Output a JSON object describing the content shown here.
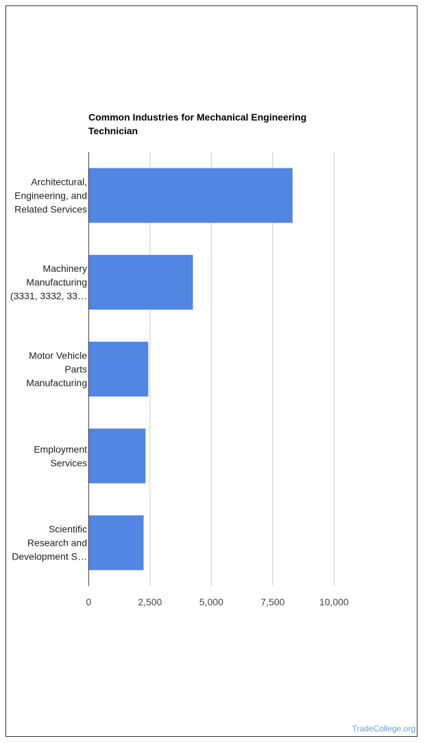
{
  "chart_data": {
    "type": "bar",
    "orientation": "horizontal",
    "title": "Common Industries for Mechanical Engineering Technician",
    "title_lines": [
      "Common Industries for Mechanical Engineering",
      "Technician"
    ],
    "categories": [
      [
        "Architectural,",
        "Engineering, and",
        "Related Services"
      ],
      [
        "Machinery",
        "Manufacturing",
        "(3331, 3332, 33…"
      ],
      [
        "Motor Vehicle",
        "Parts",
        "Manufacturing"
      ],
      [
        "Employment",
        "Services"
      ],
      [
        "Scientific",
        "Research and",
        "Development S…"
      ]
    ],
    "values": [
      8310,
      4250,
      2430,
      2320,
      2240
    ],
    "xlim": [
      0,
      10000
    ],
    "xticks": [
      0,
      2500,
      5000,
      7500,
      10000
    ],
    "xtick_labels": [
      "0",
      "2,500",
      "5,000",
      "7,500",
      "10,000"
    ],
    "grid": true,
    "bar_color": "#5286e3",
    "xlabel": "",
    "ylabel": ""
  },
  "watermark": "TradeCollege.org"
}
